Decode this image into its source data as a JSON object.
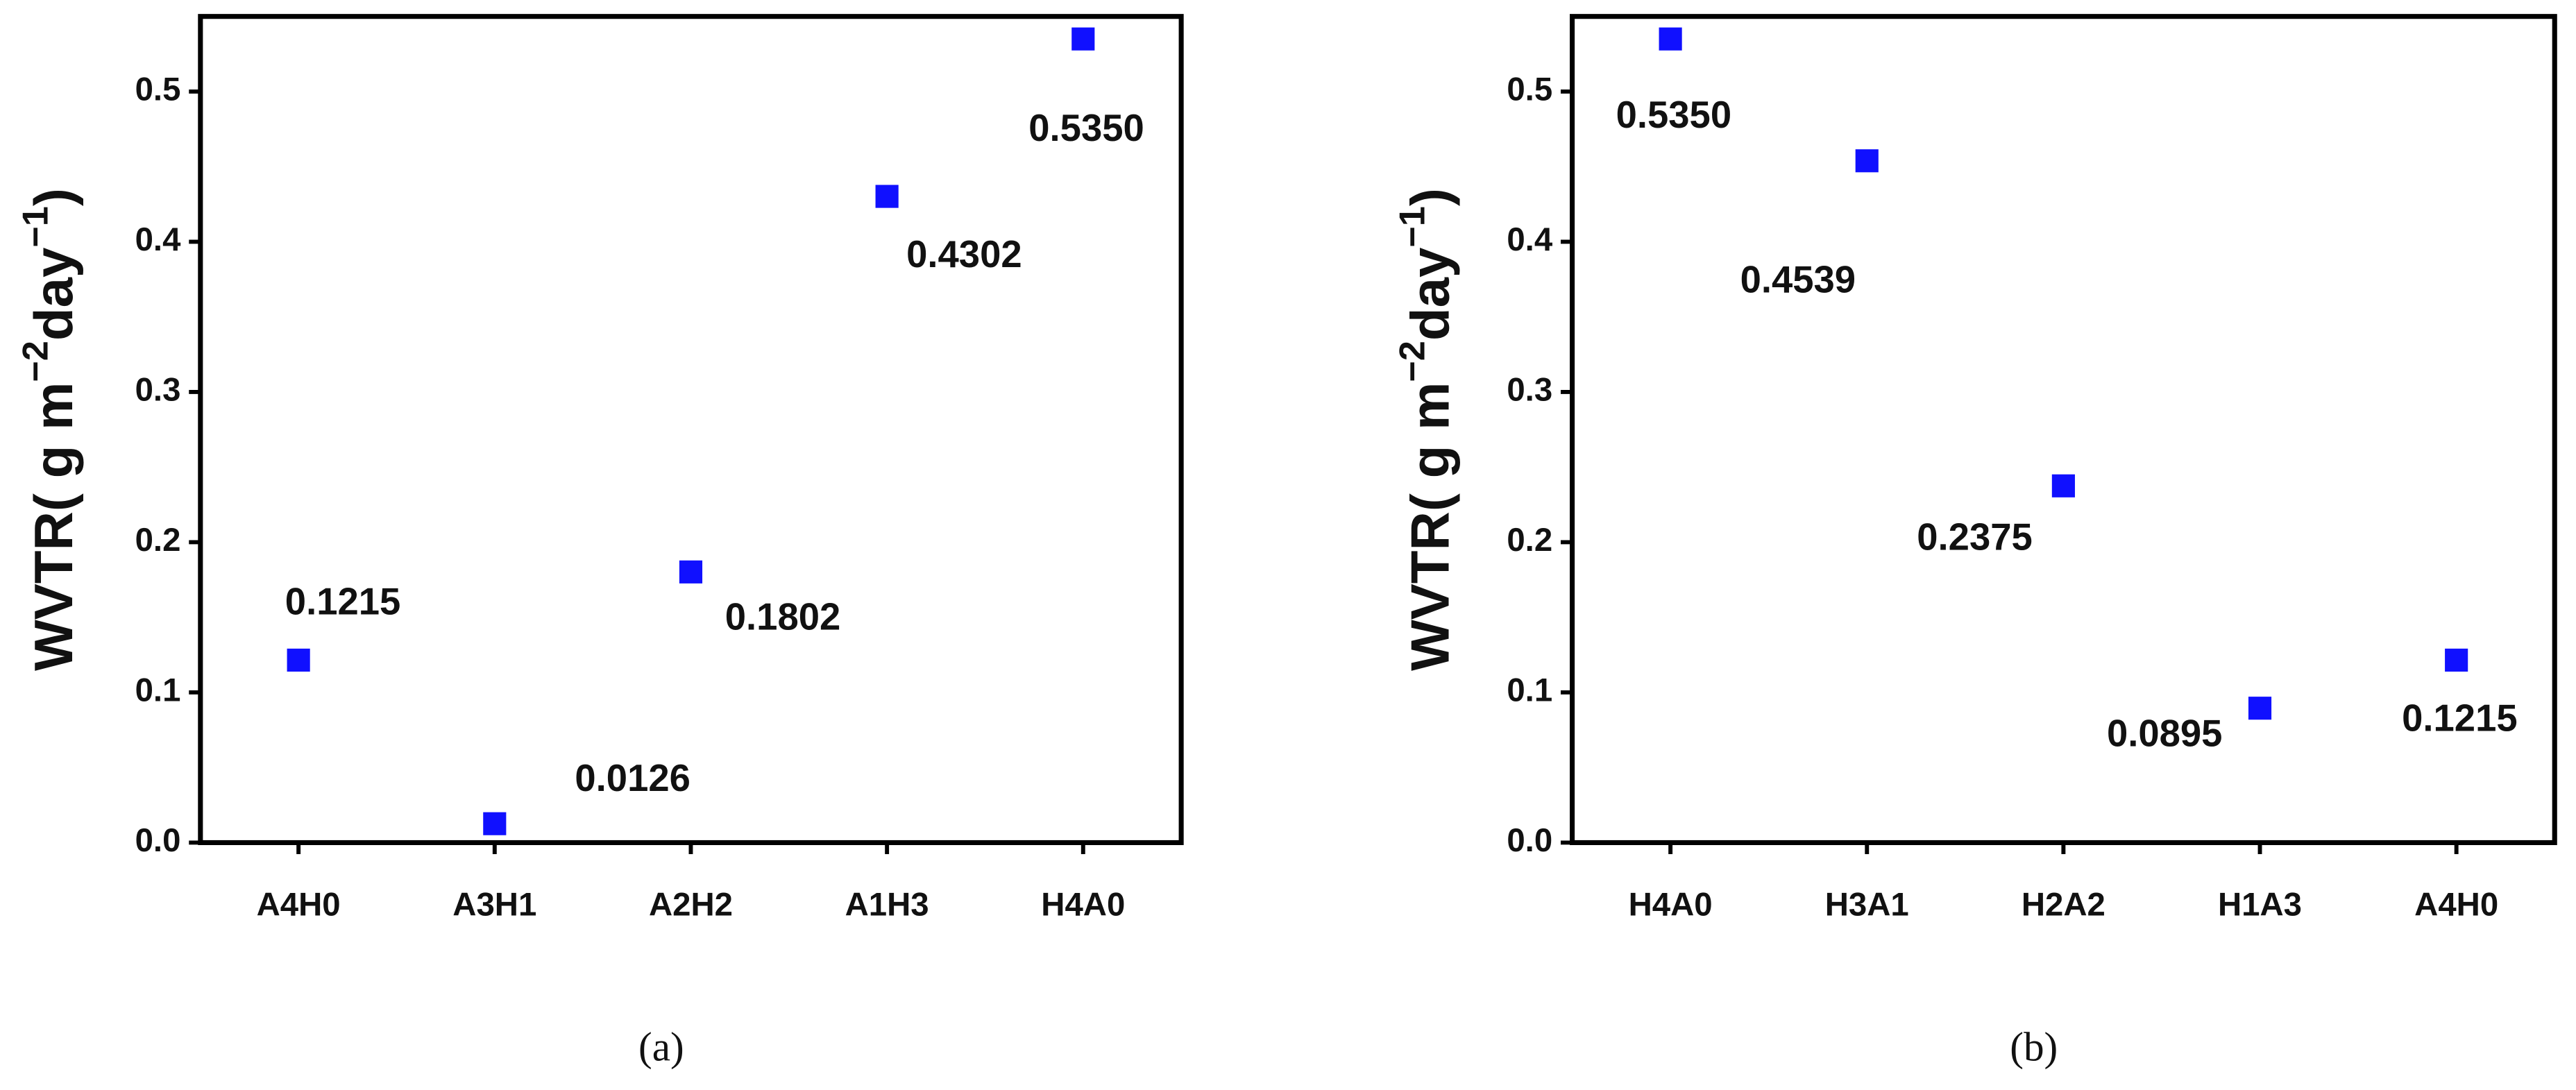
{
  "chart_data": [
    {
      "type": "scatter",
      "caption": "(a)",
      "ylabel": [
        "WVTR( g m",
        "−2",
        "day",
        "−1",
        ")"
      ],
      "categories": [
        "A4H0",
        "A3H1",
        "A2H2",
        "A1H3",
        "H4A0"
      ],
      "values": [
        0.1215,
        0.0126,
        0.1802,
        0.4302,
        0.535
      ],
      "value_labels": [
        "0.1215",
        "0.0126",
        "0.1802",
        "0.4302",
        "0.5350"
      ],
      "color": "#1010ff",
      "ylim": [
        0,
        0.55
      ],
      "yticks": [
        {
          "value": 0,
          "label": "0.0"
        },
        0.1,
        0.2,
        0.3,
        0.4,
        0.5
      ]
    },
    {
      "type": "scatter",
      "caption": "(b)",
      "ylabel": [
        "WVTR( g m",
        "−2",
        "day",
        "−1",
        ")"
      ],
      "categories": [
        "H4A0",
        "H3A1",
        "H2A2",
        "H1A3",
        "A4H0"
      ],
      "values": [
        0.535,
        0.4539,
        0.2375,
        0.0895,
        0.1215
      ],
      "value_labels": [
        "0.5350",
        "0.4539",
        "0.2375",
        "0.0895",
        "0.1215"
      ],
      "color": "#1010ff",
      "ylim": [
        0,
        0.55
      ],
      "yticks": [
        {
          "value": 0,
          "label": "0.0"
        },
        0.1,
        0.2,
        0.3,
        0.4,
        0.5
      ]
    }
  ]
}
